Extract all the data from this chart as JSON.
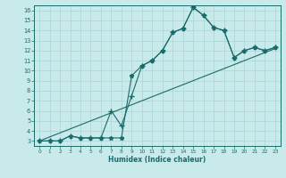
{
  "xlabel": "Humidex (Indice chaleur)",
  "bg_color": "#c8eaea",
  "line_color": "#1a6b6b",
  "grid_color": "#b0d8d8",
  "xlim": [
    -0.5,
    23.5
  ],
  "ylim": [
    2.5,
    16.5
  ],
  "xticks": [
    0,
    1,
    2,
    3,
    4,
    5,
    6,
    7,
    8,
    9,
    10,
    11,
    12,
    13,
    14,
    15,
    16,
    17,
    18,
    19,
    20,
    21,
    22,
    23
  ],
  "yticks": [
    3,
    4,
    5,
    6,
    7,
    8,
    9,
    10,
    11,
    12,
    13,
    14,
    15,
    16
  ],
  "line1_x": [
    0,
    1,
    2,
    3,
    4,
    5,
    6,
    7,
    8,
    9,
    10,
    11,
    12,
    13,
    14,
    15,
    16,
    17,
    18,
    19,
    20,
    21,
    22,
    23
  ],
  "line1_y": [
    3,
    3,
    3,
    3.5,
    3.3,
    3.3,
    3.3,
    3.3,
    3.3,
    9.5,
    10.5,
    11.0,
    12.0,
    13.8,
    14.2,
    16.3,
    15.5,
    14.3,
    14.0,
    11.3,
    12.0,
    12.3,
    12.0,
    12.3
  ],
  "line2_x": [
    0,
    1,
    2,
    3,
    4,
    5,
    6,
    7,
    8,
    9,
    10,
    11,
    12,
    13,
    14,
    15,
    16,
    17,
    18,
    19,
    20,
    21,
    22,
    23
  ],
  "line2_y": [
    3,
    3,
    3,
    3.5,
    3.3,
    3.3,
    3.3,
    6.0,
    4.5,
    7.5,
    10.5,
    11.0,
    12.0,
    13.8,
    14.2,
    16.3,
    15.5,
    14.3,
    14.0,
    11.3,
    12.0,
    12.3,
    12.0,
    12.3
  ],
  "line3_x": [
    0,
    23
  ],
  "line3_y": [
    3,
    12.2
  ],
  "marker1": "*",
  "marker2": "+",
  "markersize1": 3.5,
  "markersize2": 4.0,
  "linewidth": 0.8,
  "tick_fontsize_x": 4.2,
  "tick_fontsize_y": 4.8,
  "xlabel_fontsize": 5.5
}
